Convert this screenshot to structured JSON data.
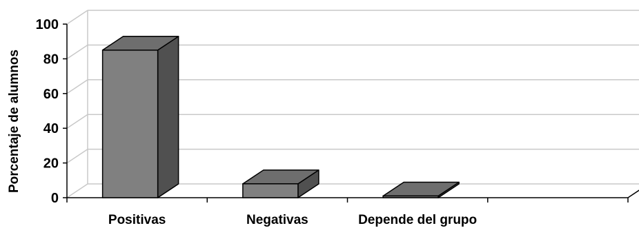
{
  "chart_data": {
    "type": "bar",
    "categories": [
      "Positivas",
      "Negativas",
      "Depende del grupo",
      ""
    ],
    "values": [
      85,
      8,
      1,
      0
    ],
    "ylabel": "Porcentaje de alumnos",
    "xlabel": "",
    "ylim": [
      0,
      100
    ],
    "yticks": [
      0,
      20,
      40,
      60,
      80,
      100
    ],
    "grid": true,
    "style": "3d-column",
    "colors": {
      "bar_front": "#808080",
      "bar_top": "#6e6e6e",
      "bar_side": "#505050",
      "grid": "#c8c8c8",
      "axis": "#000000"
    }
  }
}
